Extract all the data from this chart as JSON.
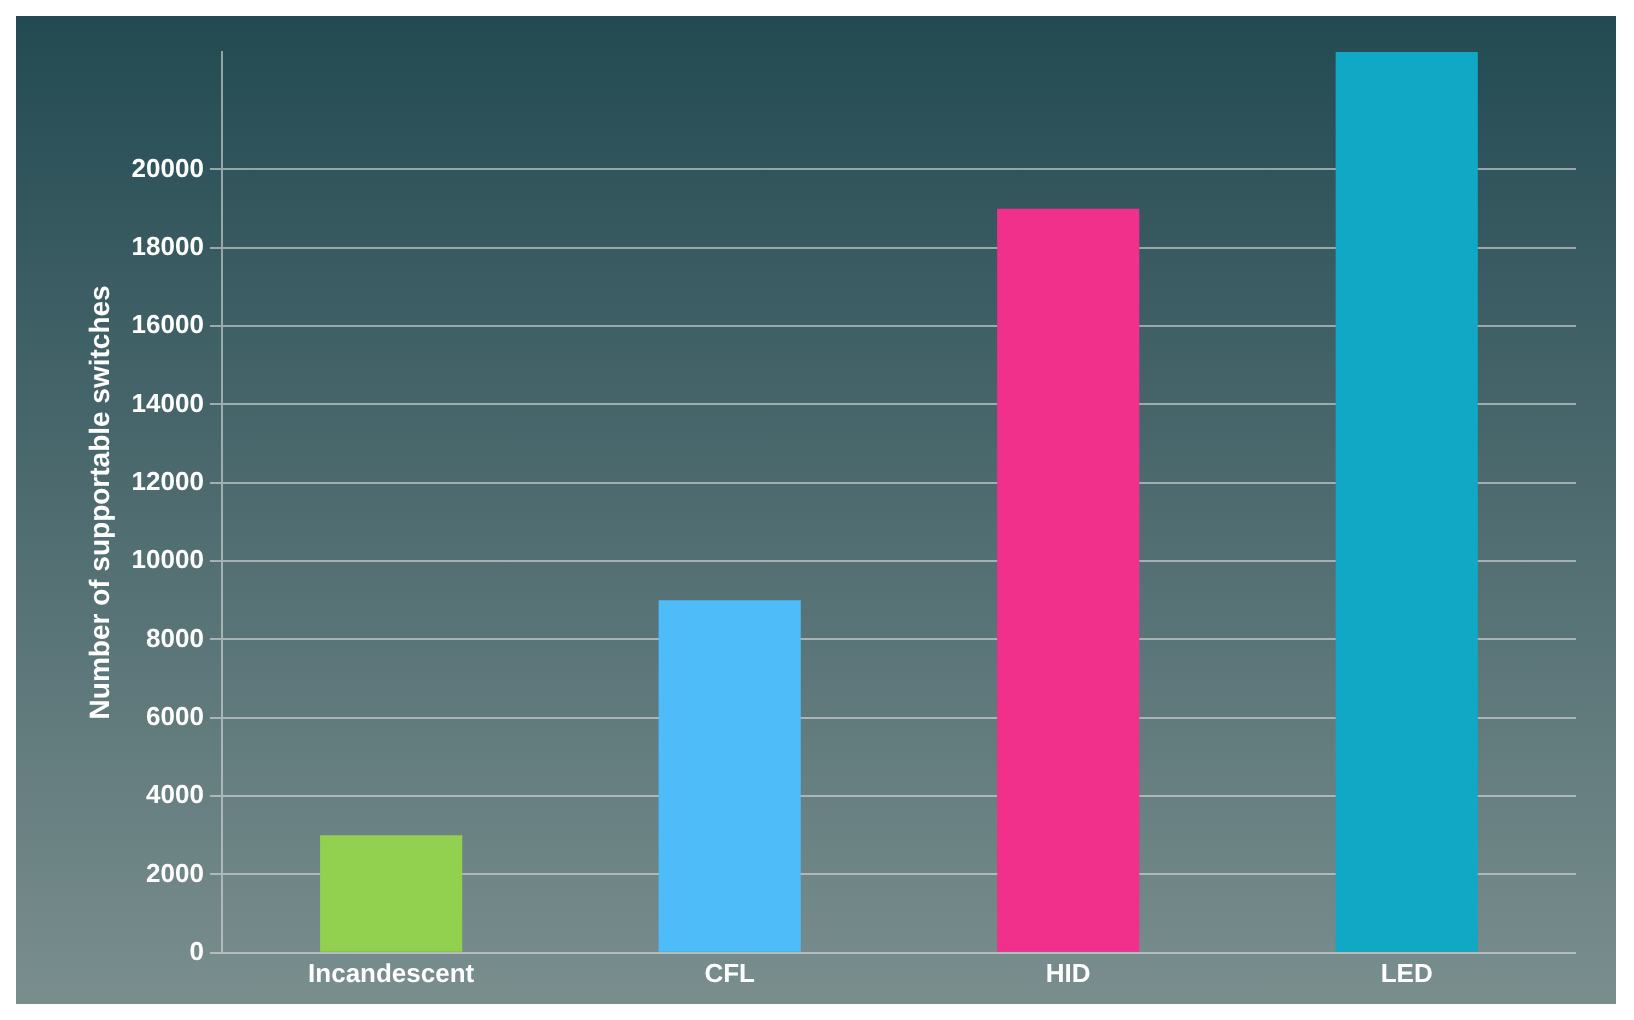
{
  "chart_data": {
    "type": "bar",
    "ylabel": "Number of supportable switches",
    "categories": [
      "Incandescent",
      "CFL",
      "HID",
      "LED"
    ],
    "values": [
      3000,
      9000,
      19000,
      23000
    ],
    "colors": [
      "#92d050",
      "#4dbcf8",
      "#f0308a",
      "#10a8c4"
    ],
    "ylim": [
      0,
      23000
    ],
    "yticks": [
      0,
      2000,
      4000,
      6000,
      8000,
      10000,
      12000,
      14000,
      16000,
      18000,
      20000
    ],
    "grid": "y",
    "legend": false
  }
}
